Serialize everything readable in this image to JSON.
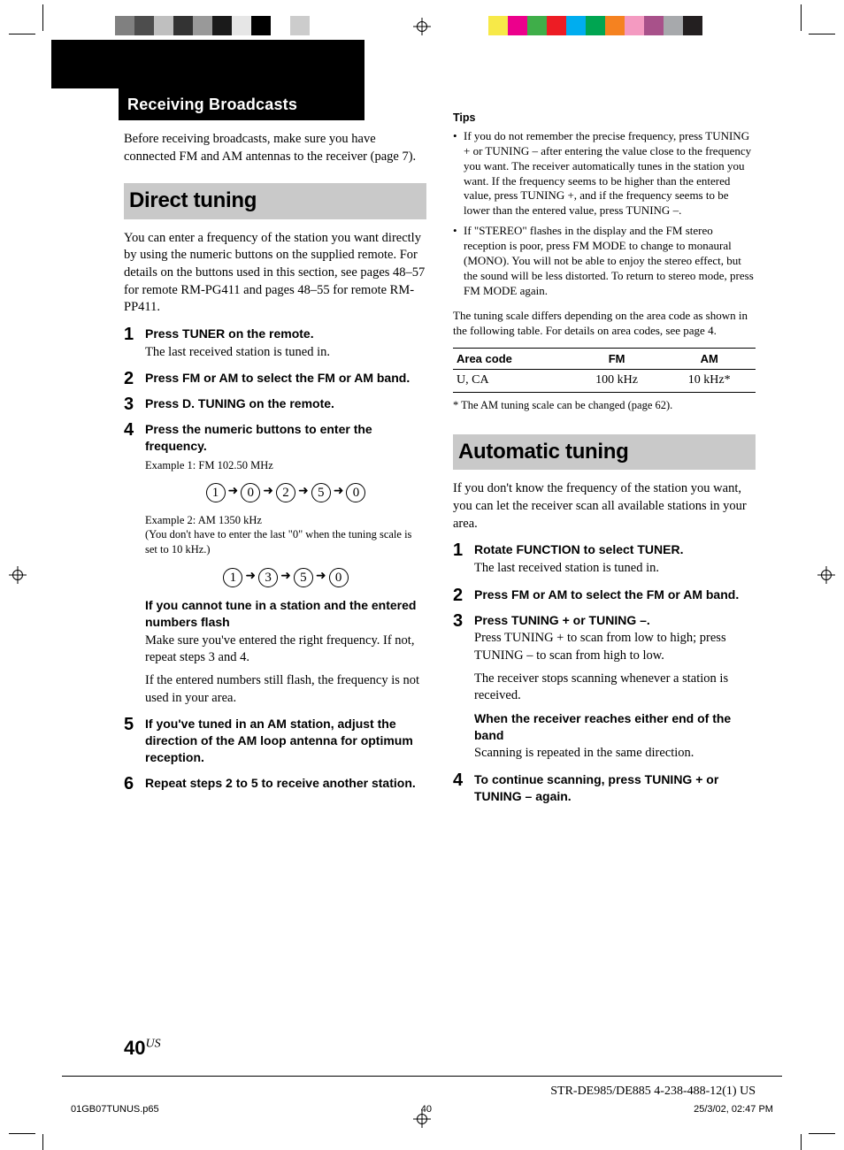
{
  "printer_marks": {
    "left_bar_colors": [
      "#808080",
      "#4d4d4d",
      "#bfbfbf",
      "#333333",
      "#999999",
      "#1a1a1a",
      "#e6e6e6",
      "#000000",
      "#ffffff",
      "#cccccc"
    ],
    "right_bar_colors": [
      "#ffffff",
      "#f7e948",
      "#ec008c",
      "#3fae49",
      "#ed1c24",
      "#00adef",
      "#00a551",
      "#f58220",
      "#f49ac1",
      "#a8518a",
      "#a7a9ac",
      "#231f20"
    ]
  },
  "banner": {
    "section": "Receiving Broadcasts"
  },
  "intro": "Before receiving broadcasts, make sure you have connected FM and AM antennas to the receiver (page 7).",
  "direct": {
    "title": "Direct tuning",
    "lead": "You can enter a frequency of the station you want directly by using the numeric buttons on the supplied remote. For details on the buttons used in this section, see pages 48–57 for remote RM-PG411 and pages 48–55 for remote RM-PP411.",
    "steps": [
      {
        "n": "1",
        "head": "Press TUNER on the remote.",
        "body": "The last received station is tuned in."
      },
      {
        "n": "2",
        "head": "Press FM or AM to select the FM or AM band."
      },
      {
        "n": "3",
        "head": "Press D. TUNING on the remote."
      },
      {
        "n": "4",
        "head": "Press the numeric buttons to enter the frequency.",
        "ex1_label": "Example 1:  FM 102.50 MHz",
        "ex1_seq": [
          "1",
          "0",
          "2",
          "5",
          "0"
        ],
        "ex2_label": "Example 2:  AM 1350 kHz",
        "ex2_note": "(You don't have to enter the last \"0\" when the tuning scale is set to 10 kHz.)",
        "ex2_seq": [
          "1",
          "3",
          "5",
          "0"
        ],
        "fail_head": "If you cannot tune in a station and the entered numbers flash",
        "fail_body1": "Make sure you've entered the right frequency.  If not, repeat steps 3 and 4.",
        "fail_body2": "If the entered numbers still flash, the frequency is not used in your area."
      },
      {
        "n": "5",
        "head": "If you've tuned in an AM station, adjust the direction of the AM loop antenna for optimum reception."
      },
      {
        "n": "6",
        "head": "Repeat steps 2 to 5 to receive another station."
      }
    ]
  },
  "tips": {
    "title": "Tips",
    "items": [
      "If you do not remember the precise frequency, press TUNING + or TUNING – after entering the value close to the frequency you want. The receiver automatically tunes in the station you want. If the frequency seems to be higher than the entered value, press TUNING +, and if the frequency seems to be lower than the entered value, press TUNING –.",
      "If \"STEREO\" flashes in the display and the FM stereo reception is poor, press FM MODE to change to monaural (MONO). You will not be able to enjoy the stereo effect, but the sound will be less distorted. To return to stereo mode, press FM MODE again."
    ]
  },
  "scale_note": "The tuning scale differs depending on the area code as shown in the following table. For details on area codes, see page 4.",
  "table": {
    "cols": [
      "Area code",
      "FM",
      "AM"
    ],
    "rows": [
      [
        "U, CA",
        "100 kHz",
        "10 kHz*"
      ]
    ],
    "footnote": "* The AM tuning scale can be changed (page 62)."
  },
  "auto": {
    "title": "Automatic tuning",
    "lead": "If you don't know the frequency of the station you want, you can let the receiver scan all available stations in your area.",
    "steps": [
      {
        "n": "1",
        "head": "Rotate FUNCTION to select TUNER.",
        "body": "The last received station is tuned in."
      },
      {
        "n": "2",
        "head": "Press FM or AM to select the FM or AM band."
      },
      {
        "n": "3",
        "head": "Press TUNING + or TUNING –.",
        "body1": "Press TUNING + to scan from low to high; press TUNING – to scan from high to low.",
        "body2": "The receiver stops scanning whenever a station is received.",
        "sub_head": "When the receiver reaches either end of the band",
        "sub_body": "Scanning is repeated in the same direction."
      },
      {
        "n": "4",
        "head": "To continue scanning, press TUNING + or TUNING – again."
      }
    ]
  },
  "page_number": {
    "num": "40",
    "suffix": "US"
  },
  "slugline": "STR-DE985/DE885    4-238-488-12(1) US",
  "imposition": {
    "file": "01GB07TUNUS.p65",
    "page": "40",
    "timestamp": "25/3/02, 02:47 PM"
  }
}
